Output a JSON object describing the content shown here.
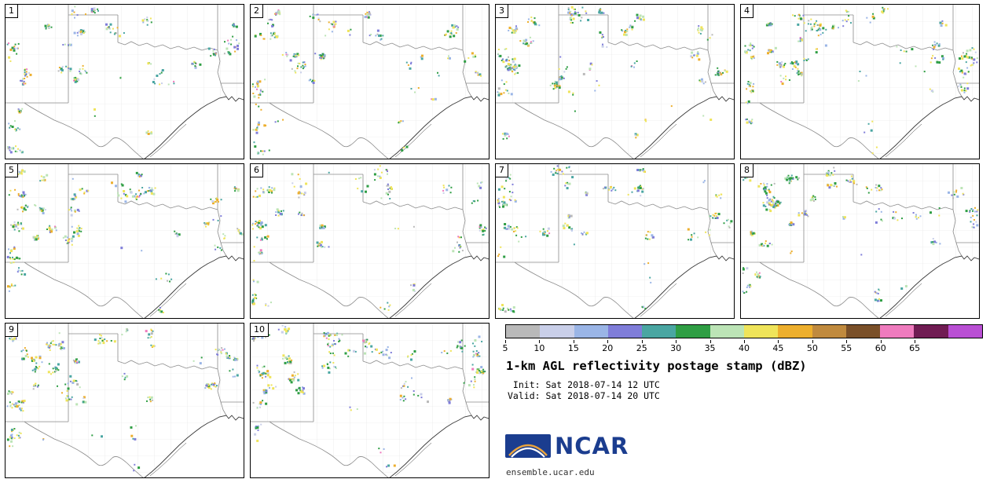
{
  "figure": {
    "title": "1-km AGL reflectivity postage stamp (dBZ)",
    "init_line": " Init: Sat 2018-07-14 12 UTC",
    "valid_line": "Valid: Sat 2018-07-14 20 UTC",
    "site": "ensemble.ucar.edu",
    "logo_text": "NCAR",
    "logo_color": "#1b3d8f"
  },
  "panels": [
    {
      "label": "1"
    },
    {
      "label": "2"
    },
    {
      "label": "3"
    },
    {
      "label": "4"
    },
    {
      "label": "5"
    },
    {
      "label": "6"
    },
    {
      "label": "7"
    },
    {
      "label": "8"
    },
    {
      "label": "9"
    },
    {
      "label": "10"
    }
  ],
  "colorbar": {
    "unit": "dBZ",
    "ticks": [
      "5",
      "10",
      "15",
      "20",
      "25",
      "30",
      "35",
      "40",
      "45",
      "50",
      "55",
      "60",
      "65"
    ],
    "colors": [
      "#b9b9b9",
      "#c9cfe9",
      "#9ab5e6",
      "#7f7dd9",
      "#4aa6a2",
      "#2f9e44",
      "#bce4b6",
      "#efe45a",
      "#edaf2d",
      "#c08a3e",
      "#7a5029",
      "#ef7bbe",
      "#701c53",
      "#b94fd4"
    ]
  },
  "map": {
    "state_line_color": "#8a8a8a",
    "county_line_color": "#e2e2e2",
    "coast_line_color": "#3a3a3a",
    "speckle_colors": [
      "#2f9e44",
      "#efe45a",
      "#4aa6a2",
      "#bce4b6",
      "#edaf2d",
      "#9ab5e6",
      "#7f7dd9",
      "#c9cfe9",
      "#b9b9b9",
      "#ef7bbe"
    ],
    "speckle_weights": [
      0.2,
      0.17,
      0.12,
      0.12,
      0.09,
      0.11,
      0.08,
      0.05,
      0.04,
      0.02
    ],
    "speckle_regions": [
      {
        "name": "west-strip",
        "x": [
          0.0,
          0.07
        ],
        "y": [
          0.02,
          0.98
        ],
        "clusters": 9,
        "dots": [
          3,
          10
        ]
      },
      {
        "name": "northwest",
        "x": [
          0.03,
          0.33
        ],
        "y": [
          0.03,
          0.52
        ],
        "clusters": 11,
        "dots": [
          4,
          16
        ]
      },
      {
        "name": "north-mid",
        "x": [
          0.3,
          0.62
        ],
        "y": [
          0.02,
          0.2
        ],
        "clusters": 6,
        "dots": [
          3,
          12
        ]
      },
      {
        "name": "northeast-band",
        "x": [
          0.8,
          0.99
        ],
        "y": [
          0.08,
          0.55
        ],
        "clusters": 7,
        "dots": [
          3,
          12
        ]
      },
      {
        "name": "mid-scatter",
        "x": [
          0.35,
          0.78
        ],
        "y": [
          0.18,
          0.5
        ],
        "clusters": 3,
        "dots": [
          2,
          8
        ]
      },
      {
        "name": "south-coast",
        "x": [
          0.5,
          0.68
        ],
        "y": [
          0.72,
          0.95
        ],
        "clusters": 2,
        "dots": [
          2,
          6
        ]
      },
      {
        "name": "isolated",
        "x": [
          0.1,
          0.95
        ],
        "y": [
          0.05,
          0.75
        ],
        "clusters": 5,
        "dots": [
          1,
          3
        ]
      }
    ]
  }
}
